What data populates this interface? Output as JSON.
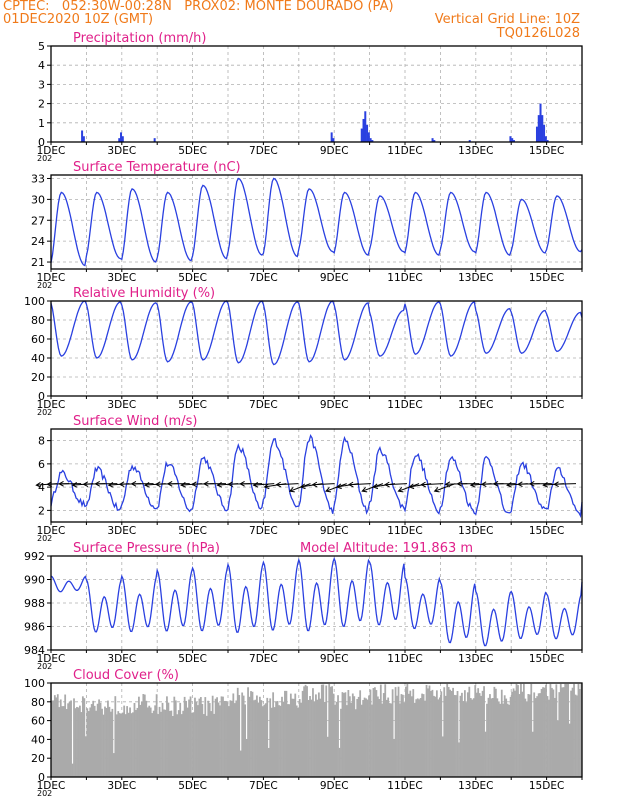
{
  "header": {
    "line1_left": "CPTEC:   052:30W-00:28N   PROX02: MONTE DOURADO (PA)",
    "line2_left": "01DEC2020 10Z (GMT)",
    "line2_right": "Vertical Grid Line: 10Z",
    "line3_right": "TQ0126L028"
  },
  "colors": {
    "header": "#f07a1a",
    "panel_title": "#e0208a",
    "series": "#2a40e0",
    "cloud": "#aaaaaa",
    "grid": "#b0b0b0",
    "axis_text": "#000000",
    "arrows": "#000000"
  },
  "x_axis": {
    "start_day": 1,
    "end_day": 16,
    "tick_labels": [
      "1DEC",
      "3DEC",
      "5DEC",
      "7DEC",
      "9DEC",
      "11DEC",
      "13DEC",
      "15DEC"
    ],
    "tick_days": [
      1,
      3,
      5,
      7,
      9,
      11,
      13,
      15
    ],
    "year_fragment": "202"
  },
  "chart_data": [
    {
      "type": "bar",
      "title": "Precipitation (mm/h)",
      "ylim": [
        0,
        5
      ],
      "yticks": [
        0,
        1,
        2,
        3,
        4,
        5
      ],
      "grid": true,
      "x_days": [
        1.85,
        1.9,
        2.9,
        2.95,
        3.0,
        3.9,
        8.9,
        8.95,
        9.75,
        9.8,
        9.85,
        9.9,
        9.95,
        10.0,
        10.05,
        11.75,
        11.8,
        12.8,
        13.95,
        14.0,
        14.05,
        14.7,
        14.75,
        14.8,
        14.85,
        14.9,
        14.95,
        15.0
      ],
      "values": [
        0.6,
        0.3,
        0.2,
        0.5,
        0.3,
        0.2,
        0.5,
        0.2,
        0.7,
        1.2,
        1.6,
        0.9,
        0.5,
        0.2,
        0.1,
        0.2,
        0.1,
        0.1,
        0.3,
        0.2,
        0.1,
        0.8,
        1.4,
        2.0,
        1.4,
        0.9,
        0.3,
        0.1
      ]
    },
    {
      "type": "line",
      "title": "Surface Temperature (nC)",
      "ylim": [
        20,
        33.5
      ],
      "yticks": [
        21,
        24,
        27,
        30,
        33
      ],
      "grid": true,
      "daily_min": [
        20.5,
        21.5,
        21.0,
        21.2,
        21.5,
        22.0,
        21.8,
        22.5,
        22.0,
        22.5,
        22.0,
        22.5,
        22.0,
        22.3,
        22.5,
        22.5
      ],
      "daily_max": [
        31.0,
        31.0,
        31.5,
        31.0,
        32.0,
        33.0,
        33.0,
        31.5,
        31.0,
        30.5,
        31.0,
        31.0,
        31.0,
        30.0,
        30.5,
        30.0
      ],
      "line_values_at_start_end": [
        21.8,
        24.5
      ]
    },
    {
      "type": "line",
      "title": "Relative Humidity (%)",
      "ylim": [
        0,
        100
      ],
      "yticks": [
        0,
        20,
        40,
        60,
        80,
        100
      ],
      "grid": true,
      "daily_min": [
        42,
        40,
        38,
        36,
        38,
        35,
        33,
        36,
        38,
        42,
        44,
        42,
        45,
        45,
        47,
        42
      ],
      "daily_max": [
        100,
        99,
        98,
        99,
        100,
        100,
        99,
        100,
        98,
        90,
        99,
        99,
        92,
        90,
        88,
        84
      ],
      "line_values_at_start_end": [
        100,
        76
      ]
    },
    {
      "type": "line",
      "title": "Surface Wind (m/s)",
      "ylim": [
        1,
        9
      ],
      "yticks": [
        2,
        4,
        6,
        8
      ],
      "grid": true,
      "daily_min": [
        2.5,
        2.0,
        2.3,
        2.0,
        2.2,
        2.0,
        2.5,
        2.0,
        2.0,
        2.3,
        2.0,
        2.0,
        1.5,
        2.0,
        1.8,
        2.3
      ],
      "daily_max": [
        5.2,
        5.5,
        5.8,
        6.0,
        6.5,
        7.5,
        8.0,
        8.2,
        8.0,
        7.2,
        6.8,
        6.5,
        6.5,
        6.0,
        5.5,
        6.0
      ],
      "line_values_at_start_end": [
        3.0,
        4.0
      ],
      "arrows": {
        "count": 44,
        "direction": "from east (toward west), slightly from south-east in middle days"
      }
    },
    {
      "type": "line",
      "title": "Surface Pressure (hPa)",
      "subtitle": "Model Altitude: 191.863 m",
      "ylim": [
        984,
        992
      ],
      "yticks": [
        984,
        986,
        988,
        990,
        992
      ],
      "grid": true,
      "daily_min": [
        988.8,
        985.0,
        985.0,
        985.0,
        985.0,
        984.8,
        985.0,
        984.9,
        985.3,
        985.5,
        985.3,
        984.0,
        983.8,
        984.5,
        984.5,
        985.5
      ],
      "daily_max": [
        990.3,
        990.0,
        990.3,
        990.8,
        991.0,
        991.3,
        991.5,
        991.7,
        991.8,
        991.5,
        990.2,
        989.8,
        989.0,
        989.0,
        988.8,
        989.8
      ],
      "line_values_at_start_end": [
        989.5,
        987.0
      ]
    },
    {
      "type": "bar",
      "title": "Cloud Cover (%)",
      "ylim": [
        0,
        100
      ],
      "yticks": [
        0,
        20,
        40,
        60,
        80,
        100
      ],
      "grid": true,
      "day_levels": [
        82,
        78,
        80,
        78,
        78,
        87,
        86,
        92,
        85,
        90,
        92,
        92,
        90,
        93,
        95,
        94
      ]
    }
  ]
}
